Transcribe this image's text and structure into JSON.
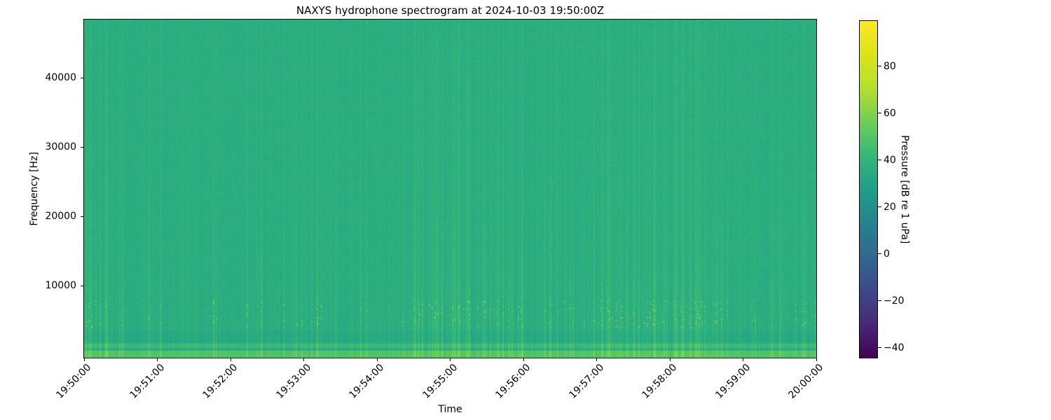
{
  "chart_data": {
    "type": "heatmap",
    "subtype": "spectrogram",
    "title": "NAXYS hydrophone spectrogram at 2024-10-03 19:50:00Z",
    "xlabel": "Time",
    "ylabel": "Frequency [Hz]",
    "x_tick_labels": [
      "19:50:00",
      "19:51:00",
      "19:52:00",
      "19:53:00",
      "19:54:00",
      "19:55:00",
      "19:56:00",
      "19:57:00",
      "19:58:00",
      "19:59:00",
      "20:00:00"
    ],
    "x_tick_rotation_deg": 45,
    "time_span_seconds": 600,
    "y_ticks_hz": [
      10000,
      20000,
      30000,
      40000
    ],
    "y_tick_labels": [
      "10000",
      "20000",
      "30000",
      "40000"
    ],
    "ylim_hz": [
      0,
      48000
    ],
    "grid": false,
    "legend": "none",
    "colormap": "viridis",
    "viridis_anchors": [
      "#440154",
      "#482878",
      "#3e4989",
      "#31688e",
      "#26828e",
      "#1f9e89",
      "#35b779",
      "#6ece58",
      "#b5de2b",
      "#dce319",
      "#fde725"
    ],
    "colorbar": {
      "label": "Pressure [dB re 1 uPa]",
      "position": "right",
      "orientation": "vertical",
      "ticks": [
        80,
        60,
        40,
        20,
        0,
        -20,
        -40
      ],
      "tick_labels": [
        "80",
        "60",
        "40",
        "20",
        "0",
        "−20",
        "−40"
      ],
      "vmin": -44.3,
      "vmax": 99.3
    },
    "texture_model": {
      "seed": 42,
      "cols": 523,
      "rows": 242,
      "base_db": 36,
      "pixel_noise_db": 1.2,
      "column_noise_db": 2.4,
      "transient_probability_mean": 0.26,
      "transient_boost_db_min": 3,
      "transient_boost_db_max": 11,
      "transient_lowfreq_efold_hz": 13000,
      "speckle_band_hz": [
        3800,
        7800
      ],
      "speckle_probability": 0.2,
      "speckle_extra_db_max": 16,
      "bands": [
        {
          "range_hz": [
            -400,
            600
          ],
          "delta_db": 13
        },
        {
          "range_hz": [
            1000,
            1600
          ],
          "delta_db": 7
        },
        {
          "range_hz": [
            1900,
            3400
          ],
          "delta_db": -2
        }
      ]
    }
  }
}
